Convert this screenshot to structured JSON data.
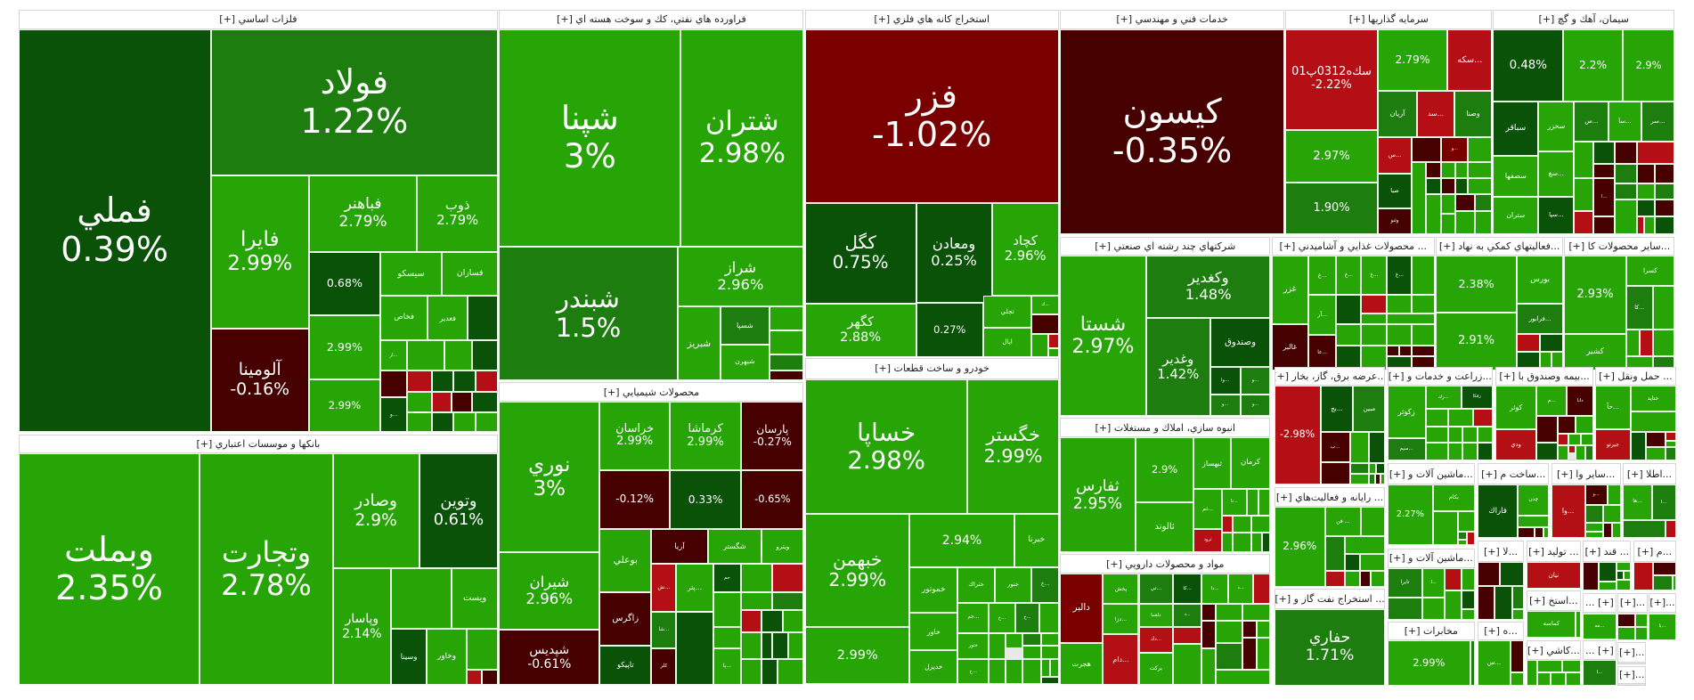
{
  "colors": {
    "bg": "#27a506",
    "mg": "#1e7d0f",
    "dg": "#0b5209",
    "dr": "#470000",
    "r2": "#7a0000",
    "r": "#b40f14"
  },
  "sectors": [
    {
      "title": "فلزات اساسي [+]",
      "tiles": [
        [
          "فملي",
          "0.39%",
          "dg"
        ],
        [
          "فولاد",
          "1.22%",
          "mg"
        ],
        [
          "فايرا",
          "2.99%",
          "bg"
        ],
        [
          "آلومينا",
          "-0.16%",
          "dr"
        ],
        [
          "فباهنر",
          "2.79%",
          "bg"
        ],
        [
          "ذوب",
          "2.79%",
          "bg"
        ],
        [
          "",
          "0.68%",
          "dg"
        ],
        [
          "",
          "2.99%",
          "bg"
        ],
        [
          "",
          "2.99%",
          "bg"
        ],
        [
          "سيسكو",
          "",
          "bg"
        ],
        [
          "فسازان",
          "",
          "bg"
        ],
        [
          "فخاص",
          "",
          "bg"
        ],
        [
          "فغدير",
          "",
          "bg"
        ],
        "dg",
        [
          "...ار",
          "",
          "bg"
        ],
        "bg",
        "bg",
        "dg",
        "dr",
        [
          "...و",
          "",
          "dg"
        ],
        "r",
        "dg",
        "dg",
        "r",
        "bg",
        "bg",
        "r",
        "dr",
        "dg",
        "dg",
        "bg",
        "bg"
      ]
    },
    {
      "title": "بانكها و موسسات اعتباري [+]",
      "tiles": [
        [
          "وبملت",
          "2.35%",
          "bg"
        ],
        [
          "وتجارت",
          "2.78%",
          "bg"
        ],
        [
          "وصادر",
          "2.9%",
          "bg"
        ],
        [
          "وتوين",
          "0.61%",
          "dg"
        ],
        [
          "وپاسار",
          "2.14%",
          "bg"
        ],
        "bg",
        [
          "ويست",
          "",
          "bg"
        ],
        [
          "وسينا",
          "",
          "dg"
        ],
        [
          "وخاور",
          "",
          "bg"
        ],
        "bg",
        "r",
        "dr"
      ]
    },
    {
      "title": "فراورده هاي نفتي، كك و سوخت هسته اي [+]",
      "tiles": [
        [
          "شپنا",
          "3%",
          "bg"
        ],
        [
          "شتران",
          "2.98%",
          "bg"
        ],
        [
          "شبندر",
          "1.5%",
          "mg"
        ],
        [
          "شراز",
          "2.96%",
          "bg"
        ],
        [
          "شبريز",
          "",
          "bg"
        ],
        [
          "شسپا",
          "",
          "mg"
        ],
        [
          "شبهرن",
          "",
          "bg"
        ],
        "bg",
        "bg",
        "mg",
        "dr"
      ]
    },
    {
      "title": "محصولات شيميايي [+]",
      "tiles": [
        [
          "نوري",
          "3%",
          "bg"
        ],
        [
          "شيران",
          "2.96%",
          "bg"
        ],
        [
          "شپديس",
          "-0.61%",
          "dr"
        ],
        [
          "خراسان",
          "2.99%",
          "bg"
        ],
        [
          "كرماشا",
          "2.99%",
          "bg"
        ],
        [
          "پارسان",
          "-0.27%",
          "dr"
        ],
        [
          "",
          "-0.12%",
          "dr"
        ],
        [
          "",
          "0.33%",
          "dg"
        ],
        [
          "",
          "-0.65%",
          "dr"
        ],
        [
          "بوعلي",
          "",
          "bg"
        ],
        [
          "آريا",
          "",
          "dr"
        ],
        [
          "شگستر",
          "",
          "bg"
        ],
        [
          "ويترو",
          "",
          "bg"
        ],
        [
          "زاگرس",
          "",
          "dr"
        ],
        [
          "تاپيكو",
          "",
          "dg"
        ],
        [
          "...ش",
          "",
          "r"
        ],
        [
          "...پتر",
          "",
          "bg"
        ],
        [
          "جم",
          "",
          "dg"
        ],
        "bg",
        "r",
        "bg",
        "bg",
        "mg",
        [
          "...شا",
          "",
          "mg"
        ],
        [
          "كلر",
          "",
          "dr"
        ],
        "dg",
        "bg",
        [
          "...پا",
          "",
          "bg"
        ],
        "r",
        "dg",
        "bg",
        "bg",
        "dg",
        "dg",
        "bg",
        "bg",
        "dg",
        "bg"
      ]
    },
    {
      "title": "استخراج كانه هاي فلزي [+]",
      "tiles": [
        [
          "فزر",
          "-1.02%",
          "r2"
        ],
        [
          "كگل",
          "0.75%",
          "dg"
        ],
        [
          "ومعادن",
          "0.25%",
          "dg"
        ],
        [
          "كچاد",
          "2.96%",
          "bg"
        ],
        [
          "كگهر",
          "2.88%",
          "bg"
        ],
        [
          "",
          "0.27%",
          "dg"
        ],
        [
          "تجلي",
          "",
          "bg"
        ],
        [
          "اپال",
          "",
          "bg"
        ],
        [
          "...ك",
          "",
          "bg"
        ],
        "dr",
        "bg",
        "r",
        "bg"
      ]
    },
    {
      "title": "خودرو و ساخت قطعات [+]",
      "tiles": [
        [
          "خساپا",
          "2.98%",
          "bg"
        ],
        [
          "خگستر",
          "2.99%",
          "bg"
        ],
        [
          "خبهمن",
          "2.99%",
          "bg"
        ],
        [
          "",
          "2.99%",
          "bg"
        ],
        [
          "",
          "2.94%",
          "bg"
        ],
        [
          "خبرنا",
          "",
          "bg"
        ],
        [
          "خموتور",
          "",
          "bg"
        ],
        [
          "خاور",
          "",
          "bg"
        ],
        [
          "خديزل",
          "",
          "bg"
        ],
        [
          "ختراك",
          "",
          "bg"
        ],
        [
          "خنور",
          "",
          "bg"
        ],
        [
          "...خ",
          "",
          "mg"
        ],
        [
          "...خم",
          "",
          "bg"
        ],
        [
          "...خ",
          "",
          "bg"
        ],
        [
          "...خ",
          "",
          "mg"
        ],
        "bg",
        [
          "ختور",
          "",
          "bg"
        ],
        [
          "...خ",
          "",
          "bg"
        ],
        "bg",
        "bg",
        "mg",
        "bg",
        "bg",
        "bg",
        "bg",
        "bg",
        "bg",
        "bg",
        "bg",
        "dg"
      ]
    },
    {
      "title": "خدمات فني و مهندسي [+]",
      "tiles": [
        [
          "كيسون",
          "-0.35%",
          "dr"
        ]
      ]
    },
    {
      "title": "سرمايه گذاريها [+]",
      "tiles": [
        [
          "سك‌ه0312پ01",
          "-2.22%",
          "r"
        ],
        [
          "",
          "2.97%",
          "bg"
        ],
        [
          "",
          "1.90%",
          "mg"
        ],
        [
          "",
          "2.79%",
          "bg"
        ],
        [
          "...سكه",
          "",
          "r"
        ],
        [
          "آريان",
          "",
          "mg"
        ],
        [
          "...سد",
          "",
          "r"
        ],
        [
          "وصنا",
          "",
          "mg"
        ],
        [
          "...س",
          "",
          "r"
        ],
        "dr",
        [
          "...و",
          "",
          "r2"
        ],
        "bg",
        [
          "صبا",
          "",
          "dg"
        ],
        [
          "وثنو",
          "",
          "dr"
        ],
        "bg",
        "dr",
        "bg",
        "bg",
        "bg",
        "dg",
        "dr",
        "dg",
        "bg",
        "bg",
        "bg",
        "dr",
        "mg",
        "bg",
        "bg",
        "bg"
      ]
    },
    {
      "title": "سيمان، آهك و گچ [+]",
      "tiles": [
        [
          "",
          "0.48%",
          "dg"
        ],
        [
          "",
          "2.2%",
          "bg"
        ],
        [
          "",
          "2.9%",
          "bg"
        ],
        [
          "سباقر",
          "",
          "dg"
        ],
        [
          "سخزر",
          "",
          "bg"
        ],
        [
          "...س",
          "",
          "mg"
        ],
        [
          "...سآ",
          "",
          "bg"
        ],
        [
          "...سر",
          "",
          "mg"
        ],
        [
          "سصفها",
          "",
          "bg"
        ],
        [
          "...سغ",
          "",
          "bg"
        ],
        [
          "ستران",
          "",
          "bg"
        ],
        [
          "...سپا",
          "",
          "dg"
        ],
        "bg",
        "dg",
        "dr",
        "r",
        "bg",
        "r",
        "dr",
        [
          "...ا",
          "",
          "dr"
        ],
        "dr",
        "mg",
        "dr",
        "dr",
        "mg",
        "bg",
        "mg",
        "bg",
        "dg",
        "dr",
        "r",
        "bg",
        "dg"
      ]
    },
    {
      "title": "شركتهاي چند رشته اي صنعتي [+]",
      "tiles": [
        [
          "شستا",
          "2.97%",
          "bg"
        ],
        [
          "وكغدير",
          "1.48%",
          "mg"
        ],
        [
          "وغدير",
          "1.42%",
          "mg"
        ],
        [
          "وصندوق",
          "",
          "dg"
        ],
        [
          "...وا",
          "",
          "dg"
        ],
        [
          "...و",
          "",
          "mg"
        ],
        [
          "...و",
          "",
          "mg"
        ],
        [
          "...و",
          "",
          "mg"
        ]
      ]
    },
    {
      "title": "انبوه سازي، املاك و مستغلات [+]",
      "tiles": [
        [
          "ثفارس",
          "2.95%",
          "bg"
        ],
        [
          "",
          "2.9%",
          "bg"
        ],
        [
          "ثالوند",
          "",
          "bg"
        ],
        [
          "ثبهساز",
          "",
          "bg"
        ],
        [
          "كرمان",
          "",
          "bg"
        ],
        [
          "...ثم",
          "",
          "bg"
        ],
        [
          "ثرود",
          "",
          "r"
        ],
        [
          "...ثا",
          "",
          "bg"
        ],
        "bg",
        "bg",
        "r",
        "bg",
        "bg",
        "bg",
        "bg",
        "bg",
        "dg"
      ]
    },
    {
      "title": "مواد و محصولات دارويي [+]",
      "tiles": [
        [
          "دالبر",
          "",
          "r2"
        ],
        [
          "هجرت",
          "",
          "bg"
        ],
        [
          "پخش",
          "",
          "bg"
        ],
        [
          "...دزا",
          "",
          "bg"
        ],
        [
          "...دام",
          "",
          "r"
        ],
        [
          "...تي",
          "",
          "mg"
        ],
        [
          "دلقما",
          "",
          "bg"
        ],
        [
          "...دك",
          "",
          "r"
        ],
        [
          "بركت",
          "",
          "bg"
        ],
        [
          "...كا",
          "",
          "dg"
        ],
        [
          "...د",
          "",
          "mg"
        ],
        [
          "...دا",
          "",
          "bg"
        ],
        [
          "...د",
          "",
          "bg"
        ],
        "r",
        "dr",
        "bg",
        "bg",
        "r",
        "bg",
        "dr",
        "bg",
        "dr",
        "bg",
        "bg",
        "mg",
        "dr",
        "bg",
        "bg"
      ]
    },
    {
      "title": "... محصولات غذايي و آشاميدني [+]",
      "tiles": [
        [
          "غزر",
          "",
          "bg"
        ],
        [
          "غالبر",
          "",
          "dr"
        ],
        [
          "...غ",
          "",
          "bg"
        ],
        [
          "...آر",
          "",
          "bg"
        ],
        [
          "...عا",
          "",
          "dr"
        ],
        [
          "...غ",
          "",
          "bg"
        ],
        [
          "...غ",
          "",
          "bg"
        ],
        [
          "...غ",
          "",
          "dg"
        ],
        "bg",
        "dg",
        "r",
        "bg",
        "bg",
        "bg",
        "bg",
        "bg",
        "dg",
        "bg",
        "bg",
        "bg",
        "dr",
        "dr",
        "dr",
        "bg",
        "dg",
        "dr"
      ]
    },
    {
      "title": "...فعاليتهاي كمكي به نهاد [+]",
      "tiles": [
        [
          "",
          "2.38%",
          "bg"
        ],
        [
          "",
          "2.91%",
          "bg"
        ],
        [
          "بورس",
          "",
          "bg"
        ],
        [
          "...فرابور",
          "",
          "mg"
        ],
        "r",
        "dg",
        "dg",
        "bg",
        "bg"
      ]
    },
    {
      "title": "...ساير محصولات كا [+]",
      "tiles": [
        [
          "",
          "2.93%",
          "bg"
        ],
        [
          "كشير",
          "",
          "bg"
        ],
        [
          "كسرا",
          "",
          "bg"
        ],
        [
          "...كا",
          "",
          "mg"
        ],
        "bg",
        "bg",
        "r",
        "bg",
        "bg",
        "mg"
      ]
    },
    {
      "title": "...عرضه برق، گاز، بخار [+]",
      "tiles": [
        [
          "",
          "-2.98%",
          "r"
        ],
        [
          "...بج",
          "",
          "dg"
        ],
        [
          "مبين",
          "",
          "mg"
        ],
        [
          "...ب",
          "",
          "dr"
        ],
        "dr",
        "bg",
        "dg",
        "mg",
        "bg",
        "bg",
        "dg",
        "mg",
        "dr",
        "bg"
      ]
    },
    {
      "title": "... رايانه و فعاليت‌هاي [+]",
      "tiles": [
        [
          "",
          "2.96%",
          "bg"
        ],
        [
          "... فن",
          "",
          "bg"
        ],
        "bg",
        "mg",
        "bg",
        "dg",
        "bg",
        "r",
        "bg",
        "dr",
        "bg"
      ]
    },
    {
      "title": "... استخراج نفت گاز و [+]",
      "tiles": [
        [
          "حفاري",
          "1.71%",
          "mg"
        ]
      ]
    },
    {
      "title": "...زراعت و خدمات و [+]",
      "tiles": [
        [
          "زكوثر",
          "",
          "bg"
        ],
        [
          "...سيم",
          "",
          "mg"
        ],
        [
          "...زك",
          "",
          "bg"
        ],
        [
          "زفكا",
          "",
          "dg"
        ],
        "bg",
        "bg",
        "r",
        "bg",
        "bg",
        "bg",
        "bg",
        "bg",
        "bg",
        "bg",
        "dg"
      ]
    },
    {
      "title": "...بيمه وصندوق با [+]",
      "tiles": [
        [
          "كوثر",
          "",
          "bg"
        ],
        [
          "...م",
          "",
          "bg"
        ],
        [
          "دانا",
          "",
          "dr"
        ],
        [
          "ودي",
          "",
          "r"
        ],
        "dr",
        "dr",
        "bg",
        "dg",
        "r",
        "bg",
        "bg",
        "bg",
        "r",
        "bg",
        "mg"
      ]
    },
    {
      "title": "... حمل ونقل [+]",
      "tiles": [
        [
          "...حآ",
          "",
          "bg"
        ],
        [
          "حتايد",
          "",
          "bg"
        ],
        "bg",
        [
          "جيرتو",
          "",
          "r"
        ],
        "dg",
        "dr",
        "r",
        "bg",
        "bg",
        "mg"
      ]
    },
    {
      "title": "...ماشين آلات و [+]",
      "tiles": [
        [
          "",
          "2.27%",
          "bg"
        ],
        [
          "بكام",
          "",
          "bg"
        ],
        "bg",
        "bg",
        "mg",
        "r",
        "bg"
      ]
    },
    {
      "title": "...ساخت م [+]",
      "tiles": [
        [
          "فاراك",
          "",
          "dg"
        ],
        [
          "چدن",
          "",
          "bg"
        ],
        "bg",
        "dr",
        "dr",
        "bg"
      ]
    },
    {
      "title": "...ساير وا [+]",
      "tiles": [
        [
          "...وا",
          "",
          "r"
        ],
        [
          "...و",
          "",
          "dr"
        ],
        "bg",
        "mg",
        "bg",
        "bg",
        "dr",
        "bg",
        "bg"
      ]
    },
    {
      "title": "...اطلا [+]",
      "tiles": [
        [
          "...ها",
          "",
          "bg"
        ],
        [
          "...ا",
          "",
          "mg"
        ],
        "mg",
        "r"
      ]
    },
    {
      "title": "...ماشين آلات و [+]",
      "tiles": [
        [
          "تايرا",
          "",
          "mg"
        ],
        [
          "...ا",
          "",
          "bg"
        ],
        "r",
        "bg",
        "mg",
        "bg",
        "bg",
        "dg",
        "bg"
      ]
    },
    {
      "title": "مخابرات [+]",
      "tiles": [
        [
          "",
          "2.99%",
          "bg"
        ],
        "mg"
      ]
    },
    {
      "title": "...لا [+]",
      "tiles": [
        "dr",
        "dg",
        "dr",
        "dg",
        "mg",
        "bg"
      ]
    },
    {
      "title": "...ه [+]",
      "tiles": [
        [
          "...س",
          "",
          "bg"
        ],
        "dr",
        "bg"
      ]
    },
    {
      "title": "... توليد [+]",
      "tiles": [
        [
          "نيان",
          "",
          "r"
        ]
      ]
    },
    {
      "title": "...استخ [+]",
      "tiles": [
        [
          "كماسه",
          "",
          "bg"
        ],
        "bg"
      ]
    },
    {
      "title": "...كاشي [+]",
      "tiles": [
        "bg",
        "bg",
        "bg",
        "bg",
        "bg",
        "bg"
      ]
    },
    {
      "title": "... قند [+]",
      "tiles": [
        "dr",
        "dg",
        "bg",
        "bg",
        "dg",
        "bg",
        "bg"
      ]
    },
    {
      "title": "...م [+]",
      "tiles": [
        "r",
        "dr",
        "mg",
        "bg"
      ]
    },
    {
      "title": "... [+]",
      "tiles": [
        [
          "...مه",
          "",
          "bg"
        ]
      ]
    },
    {
      "title": "[+]...",
      "tiles": [
        "dr",
        "bg",
        "bg",
        "bg"
      ]
    },
    {
      "title": "[+]...",
      "tiles": [
        [
          "...يا",
          "",
          "bg"
        ]
      ]
    },
    {
      "title": "... [+]",
      "tiles": [
        [
          "...ا",
          "",
          "mg"
        ]
      ]
    },
    {
      "title": "[+]...",
      "tiles": []
    },
    {
      "title": "[+]...",
      "tiles": []
    }
  ]
}
